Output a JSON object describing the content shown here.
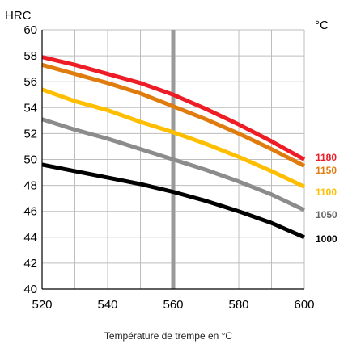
{
  "chart_data": {
    "type": "line",
    "ylabel": "HRC",
    "series_unit": "°C",
    "xlabel": "Température de trempe en °C",
    "x": [
      520,
      530,
      540,
      550,
      560,
      570,
      580,
      590,
      600
    ],
    "xlim": [
      520,
      600
    ],
    "ylim": [
      40,
      60
    ],
    "xticks": [
      "520",
      "540",
      "560",
      "580",
      "600"
    ],
    "yticks": [
      "40",
      "42",
      "44",
      "46",
      "48",
      "50",
      "52",
      "54",
      "56",
      "58",
      "60"
    ],
    "grid": true,
    "reference_line_x": 560,
    "series": [
      {
        "name": "1180",
        "color": "#ee1c25",
        "values": [
          57.9,
          57.3,
          56.6,
          55.9,
          55.0,
          53.9,
          52.7,
          51.4,
          50.0
        ]
      },
      {
        "name": "1150",
        "color": "#e07b0e",
        "values": [
          57.3,
          56.6,
          55.9,
          55.1,
          54.1,
          53.1,
          52.0,
          50.8,
          49.5
        ]
      },
      {
        "name": "1100",
        "color": "#ffbf00",
        "values": [
          55.4,
          54.5,
          53.8,
          52.9,
          52.1,
          51.2,
          50.2,
          49.1,
          47.9
        ]
      },
      {
        "name": "1050",
        "color": "#8c8c8c",
        "values": [
          53.1,
          52.3,
          51.6,
          50.8,
          50.0,
          49.2,
          48.3,
          47.3,
          46.1
        ]
      },
      {
        "name": "1000",
        "color": "#000000",
        "values": [
          49.6,
          49.1,
          48.6,
          48.1,
          47.5,
          46.8,
          46.0,
          45.1,
          44.0
        ]
      }
    ]
  }
}
